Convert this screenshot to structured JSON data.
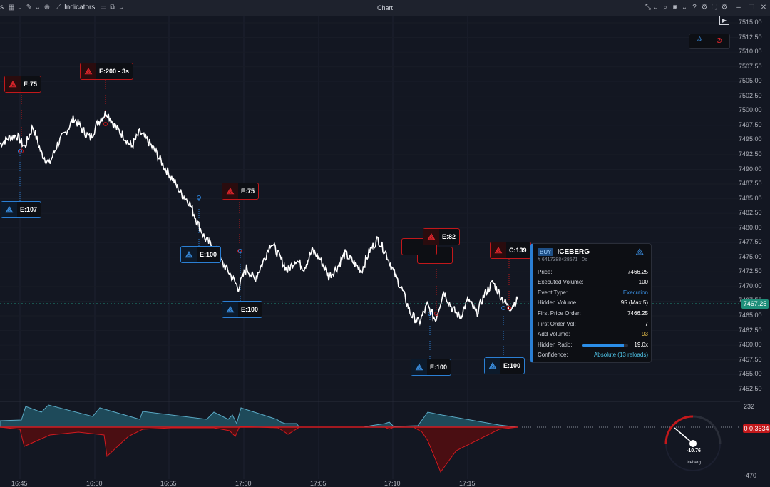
{
  "toolbar": {
    "left_label": "s",
    "indicators_label": "Indicators",
    "title": "Chart",
    "icons_left": [
      "layout-icon",
      "chevron-down-icon",
      "draw-icon",
      "chevron-down-icon",
      "zoom-icon",
      "indicators-icon",
      "template-icon",
      "chevron-down-icon",
      "layers-icon",
      "chevron-down-icon"
    ],
    "icons_right": [
      "cursor-icon",
      "chevron-down-icon",
      "search-icon",
      "camera-icon",
      "chevron-down-icon",
      "help-icon",
      "settings-icon",
      "fullscreen-icon",
      "settings-icon",
      "minimize-icon",
      "restore-icon",
      "close-icon"
    ]
  },
  "price_axis": {
    "labels": [
      "7515.00",
      "7512.50",
      "7510.00",
      "7507.50",
      "7505.00",
      "7502.50",
      "7500.00",
      "7497.50",
      "7495.00",
      "7492.50",
      "7490.00",
      "7487.50",
      "7485.00",
      "7482.50",
      "7480.00",
      "7477.50",
      "7475.00",
      "7472.50",
      "7470.00",
      "7467.50",
      "7465.00",
      "7462.50",
      "7460.00",
      "7457.50",
      "7455.00",
      "7452.50"
    ],
    "current_price": "7467.25"
  },
  "time_axis": {
    "labels": [
      "16:45",
      "16:50",
      "16:55",
      "17:00",
      "17:05",
      "17:10",
      "17:15"
    ]
  },
  "oscillator": {
    "top_label": "232",
    "bottom_label": "-470",
    "current_value": "0.3634",
    "badge": "0"
  },
  "markers": [
    {
      "color": "red",
      "label": "E:75"
    },
    {
      "color": "red",
      "label": "E:200 - 3s"
    },
    {
      "color": "blue",
      "label": "E:107"
    },
    {
      "color": "red",
      "label": "E:75"
    },
    {
      "color": "blue",
      "label": "E:100"
    },
    {
      "color": "blue",
      "label": "E:100"
    },
    {
      "color": "red",
      "label": "E:82"
    },
    {
      "color": "red",
      "label": "C:139"
    },
    {
      "color": "blue",
      "label": "E:100"
    },
    {
      "color": "blue",
      "label": "E:100"
    }
  ],
  "tooltip": {
    "badge": "BUY",
    "title": "ICEBERG",
    "id": "# 6417388428571 | 0s",
    "rows": [
      {
        "label": "Price:",
        "value": "7466.25"
      },
      {
        "label": "Executed Volume:",
        "value": "100"
      },
      {
        "label": "Event Type:",
        "value": "Execution"
      },
      {
        "label": "Hidden Volume:",
        "value": "95 (Max 5)"
      },
      {
        "label": "First Price Order:",
        "value": "7466.25"
      },
      {
        "label": "First Order Vol:",
        "value": "7"
      },
      {
        "label": "Add Volume:",
        "value": "93"
      },
      {
        "label": "Hidden Ratio:",
        "value": "19.0x"
      },
      {
        "label": "Confidence:",
        "value": "Absolute (13 reloads)"
      }
    ],
    "hidden_ratio_fill": 0.9,
    "colors": {
      "execution": "#3a8ee0",
      "add_volume": "#e8c04a",
      "confidence": "#4fc4e8"
    }
  },
  "gauge": {
    "value": "-10.76",
    "label": "Iceberg"
  },
  "chart_data": {
    "type": "line",
    "series": [
      {
        "values": [
          7494.5,
          7495.5,
          7496.0,
          7494.0,
          7497.5,
          7493.0,
          7491.0,
          7494.5,
          7496.5,
          7499.0,
          7497.0,
          7495.5,
          7498.5,
          7500.0,
          7497.5,
          7496.0,
          7494.0,
          7496.5,
          7495.0,
          7493.0,
          7490.5,
          7488.5,
          7486.0,
          7484.5,
          7481.0,
          7478.0,
          7476.5,
          7474.0,
          7472.0,
          7469.5,
          7473.0,
          7471.0,
          7474.0,
          7477.5,
          7475.0,
          7472.5,
          7474.5,
          7473.0,
          7476.0,
          7474.5,
          7471.5,
          7473.0,
          7475.5,
          7474.0,
          7472.5,
          7476.0,
          7478.0,
          7475.5,
          7472.0,
          7469.0,
          7465.0,
          7463.5,
          7466.5,
          7464.0,
          7469.0,
          7466.0,
          7464.5,
          7467.5,
          7465.0,
          7468.5,
          7470.5,
          7468.0,
          7466.0,
          7467.5
        ]
      }
    ],
    "ylim": [
      7451.25,
      7516.25
    ]
  }
}
